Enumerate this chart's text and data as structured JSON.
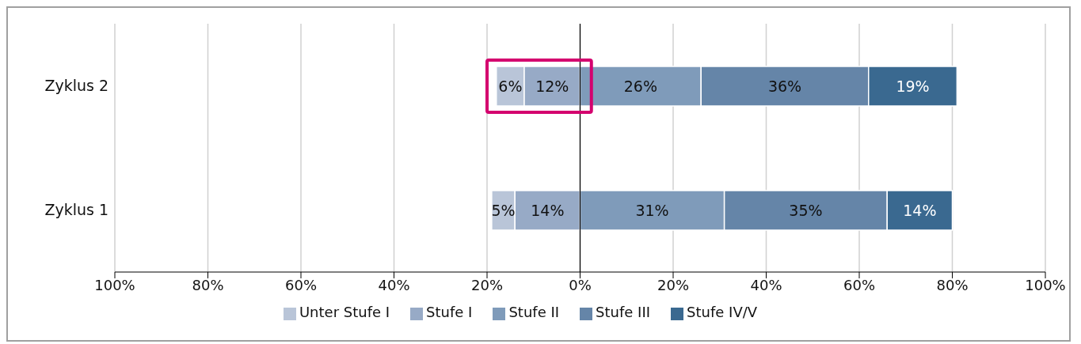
{
  "chart_data": {
    "type": "bar",
    "orientation": "horizontal",
    "categories": [
      "Zyklus 2",
      "Zyklus 1"
    ],
    "series": [
      {
        "name": "Unter Stufe I",
        "color": "#b9c5d8",
        "values": [
          6,
          5
        ],
        "base": [
          -18,
          -19
        ],
        "value_labels": [
          "6%",
          "5%"
        ]
      },
      {
        "name": "Stufe I",
        "color": "#97aac6",
        "values": [
          12,
          14
        ],
        "base": [
          -12,
          -14
        ],
        "value_labels": [
          "12%",
          "14%"
        ]
      },
      {
        "name": "Stufe II",
        "color": "#7f9bba",
        "values": [
          26,
          31
        ],
        "base": [
          0,
          0
        ],
        "value_labels": [
          "26%",
          "31%"
        ]
      },
      {
        "name": "Stufe III",
        "color": "#6585a8",
        "values": [
          36,
          35
        ],
        "base": [
          26,
          31
        ],
        "value_labels": [
          "36%",
          "35%"
        ]
      },
      {
        "name": "Stufe IV/V",
        "color": "#3a6990",
        "values": [
          19,
          14
        ],
        "base": [
          62,
          66
        ],
        "value_labels": [
          "19%",
          "14%"
        ]
      }
    ],
    "xlim": [
      -100,
      100
    ],
    "xticks": [
      {
        "value": -100,
        "label": "100%"
      },
      {
        "value": -80,
        "label": "80%"
      },
      {
        "value": -60,
        "label": "60%"
      },
      {
        "value": -40,
        "label": "40%"
      },
      {
        "value": -20,
        "label": "20%"
      },
      {
        "value": 0,
        "label": "0%"
      },
      {
        "value": 20,
        "label": "20%"
      },
      {
        "value": 40,
        "label": "40%"
      },
      {
        "value": 60,
        "label": "60%"
      },
      {
        "value": 80,
        "label": "80%"
      },
      {
        "value": 100,
        "label": "100%"
      }
    ],
    "ref_lines": [
      {
        "axis": "x",
        "value": 0,
        "color": "#000000"
      }
    ],
    "grid": "x",
    "legend": "bottom"
  }
}
